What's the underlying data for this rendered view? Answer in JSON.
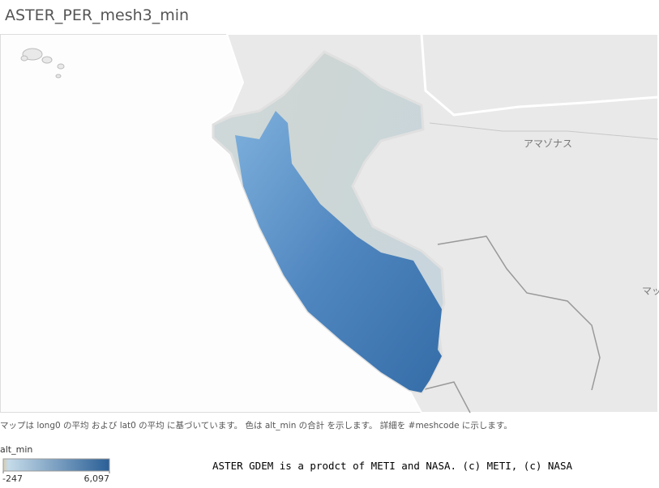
{
  "title": "ASTER_PER_mesh3_min",
  "map": {
    "labels": [
      "アマゾナス",
      "マッ"
    ]
  },
  "caption": "マップは long0 の平均 および lat0 の平均 に基づいています。 色は alt_min の合計 を示します。 詳細を #meshcode に示します。",
  "legend": {
    "title": "alt_min",
    "min": -247,
    "max": {
      "value": 6097,
      "label": "6,097"
    }
  },
  "attribution": "ASTER GDEM is a prodct of METI and NASA. (c) METI, (c) NASA"
}
